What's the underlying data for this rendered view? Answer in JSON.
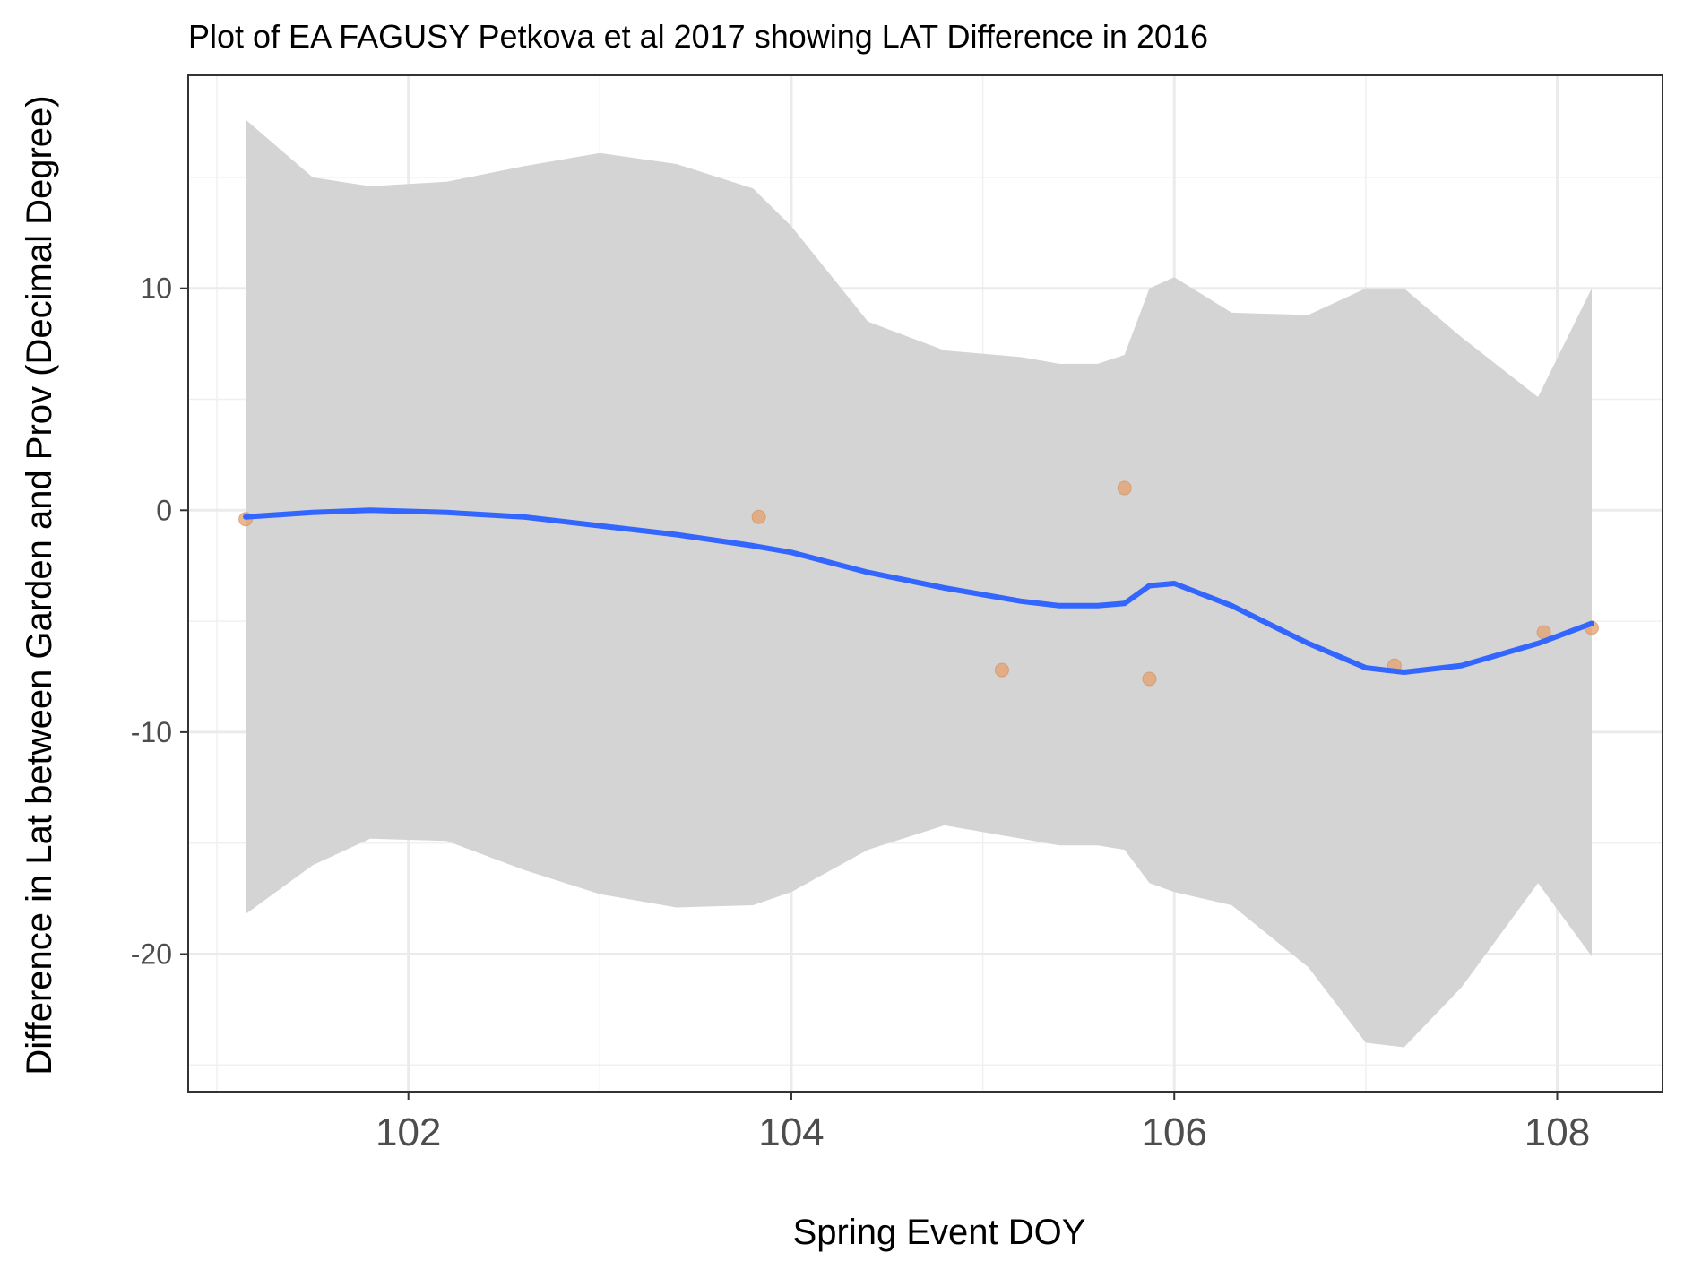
{
  "chart_data": {
    "type": "scatter",
    "title": "Plot of EA FAGUSY Petkova et al 2017 showing LAT Difference in 2016",
    "xlabel": "Spring Event DOY",
    "ylabel": "Difference in Lat between Garden and Prov (Decimal Degree)",
    "xlim": [
      100.85,
      108.55
    ],
    "ylim": [
      -26.2,
      19.6
    ],
    "x_ticks": [
      102,
      104,
      106,
      108
    ],
    "y_ticks": [
      -20,
      -10,
      0,
      10
    ],
    "x_tick_labels": [
      "102",
      "104",
      "106",
      "108"
    ],
    "y_tick_labels": [
      "-20",
      "-10",
      "0",
      "10"
    ],
    "grid": true,
    "legend": "none",
    "points": {
      "name": "",
      "color": "#E6A06E",
      "x": [
        101.15,
        103.83,
        105.1,
        105.74,
        105.87,
        107.15,
        107.93,
        108.18
      ],
      "y": [
        -0.4,
        -0.3,
        -7.2,
        1.0,
        -7.6,
        -7.0,
        -5.5,
        -5.3
      ]
    },
    "smooth": {
      "color": "#3366FF",
      "band_color": "#D4D4D4",
      "x": [
        101.15,
        101.5,
        101.8,
        102.2,
        102.6,
        103.0,
        103.4,
        103.8,
        104.0,
        104.4,
        104.8,
        105.2,
        105.4,
        105.6,
        105.74,
        105.87,
        106.0,
        106.3,
        106.7,
        107.0,
        107.2,
        107.5,
        107.9,
        108.18
      ],
      "y": [
        -0.3,
        -0.1,
        0.0,
        -0.1,
        -0.3,
        -0.7,
        -1.1,
        -1.6,
        -1.9,
        -2.8,
        -3.5,
        -4.1,
        -4.3,
        -4.3,
        -4.2,
        -3.4,
        -3.3,
        -4.3,
        -6.0,
        -7.1,
        -7.3,
        -7.0,
        -6.0,
        -5.1
      ],
      "upper": [
        17.6,
        15.0,
        14.6,
        14.8,
        15.5,
        16.1,
        15.6,
        14.5,
        12.8,
        8.5,
        7.2,
        6.9,
        6.6,
        6.6,
        7.0,
        10.0,
        10.5,
        8.9,
        8.8,
        10.0,
        10.0,
        7.8,
        5.1,
        10.0
      ],
      "lower": [
        -18.2,
        -16.0,
        -14.8,
        -14.9,
        -16.2,
        -17.3,
        -17.9,
        -17.8,
        -17.2,
        -15.3,
        -14.2,
        -14.8,
        -15.1,
        -15.1,
        -15.3,
        -16.8,
        -17.2,
        -17.8,
        -20.6,
        -24.0,
        -24.2,
        -21.5,
        -16.8,
        -20.1
      ]
    }
  }
}
